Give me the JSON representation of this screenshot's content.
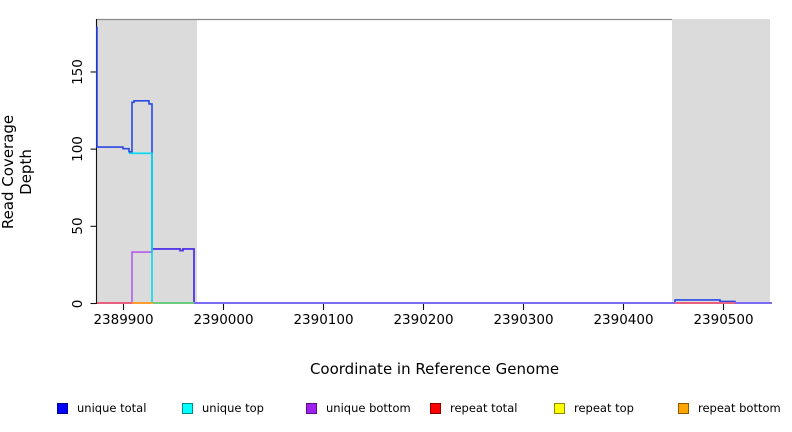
{
  "chart_data": {
    "type": "line",
    "xlabel": "Coordinate in Reference Genome",
    "ylabel": "Read Coverage Depth",
    "x_ticks": [
      2389900,
      2390000,
      2390100,
      2390200,
      2390300,
      2390400,
      2390500
    ],
    "y_ticks": [
      0,
      50,
      100,
      150
    ],
    "xlim": [
      2389874,
      2390549
    ],
    "ylim": [
      0,
      184
    ],
    "grid": false,
    "legend_position": "bottom",
    "shade_color": "#DBDBDB",
    "shaded_regions": [
      {
        "x0": 2389874,
        "x1": 2389974
      },
      {
        "x0": 2390449,
        "x1": 2390547
      }
    ],
    "series": [
      {
        "name": "repeat total",
        "color": "#FF0000",
        "segments": [
          {
            "color": "#E8506E",
            "points": [
              [
                2389874,
                0
              ],
              [
                2390549,
                0
              ]
            ]
          }
        ]
      },
      {
        "name": "repeat top",
        "color": "#FFFF00",
        "segments": [
          {
            "color": "#F5E400",
            "points": [
              [
                2389874,
                0
              ],
              [
                2389909,
                0
              ]
            ]
          }
        ]
      },
      {
        "name": "repeat bottom",
        "color": "#FFA500",
        "segments": [
          {
            "color": "#FF9D2E",
            "points": [
              [
                2389874,
                0
              ],
              [
                2389930,
                0
              ]
            ]
          }
        ]
      },
      {
        "name": "unique total",
        "color": "#0000FF",
        "segments": [
          {
            "color": "#2B48E4",
            "points": [
              [
                2389874,
                179
              ],
              [
                2389874,
                101
              ],
              [
                2389900,
                101
              ],
              [
                2389900,
                100
              ],
              [
                2389906,
                100
              ],
              [
                2389906,
                98
              ],
              [
                2389909,
                98
              ],
              [
                2389909,
                130
              ],
              [
                2389911,
                130
              ],
              [
                2389911,
                131
              ],
              [
                2389926,
                131
              ],
              [
                2389926,
                129
              ],
              [
                2389929,
                129
              ],
              [
                2389929,
                35
              ],
              [
                2389957,
                35
              ],
              [
                2389957,
                34
              ],
              [
                2389960,
                34
              ],
              [
                2389960,
                35
              ],
              [
                2389971,
                35
              ],
              [
                2389971,
                0
              ],
              [
                2390452,
                0
              ],
              [
                2390452,
                2
              ],
              [
                2390497,
                2
              ],
              [
                2390497,
                1
              ],
              [
                2390512,
                1
              ],
              [
                2390512,
                0
              ],
              [
                2390549,
                0
              ]
            ]
          }
        ]
      },
      {
        "name": "unique bottom",
        "color": "#A020F0",
        "segments": [
          {
            "color": "#B55CE8",
            "points": [
              [
                2389874,
                0
              ],
              [
                2389909,
                0
              ],
              [
                2389909,
                33
              ],
              [
                2389929,
                33
              ]
            ]
          },
          {
            "color": "#5A35E8",
            "points": [
              [
                2389929,
                33
              ],
              [
                2389929,
                35
              ],
              [
                2389957,
                35
              ],
              [
                2389957,
                34
              ],
              [
                2389960,
                34
              ],
              [
                2389960,
                35
              ],
              [
                2389971,
                35
              ],
              [
                2389971,
                0
              ]
            ]
          }
        ]
      },
      {
        "name": "unique top",
        "color": "#00FFFF",
        "segments": [
          {
            "color": "#00DCEF",
            "points": [
              [
                2389906,
                97
              ],
              [
                2389929,
                97
              ],
              [
                2389929,
                0
              ],
              [
                2389971,
                0
              ]
            ]
          }
        ]
      }
    ],
    "baseline_overlay": [
      {
        "x0": 2389874,
        "x1": 2389909,
        "color": "#E8617F"
      },
      {
        "x0": 2389909,
        "x1": 2389930,
        "color": "#FF9D2E"
      },
      {
        "x0": 2389930,
        "x1": 2389971,
        "color": "#6CCB7E"
      },
      {
        "x0": 2389971,
        "x1": 2390452,
        "color": "#7B6AF2"
      },
      {
        "x0": 2390452,
        "x1": 2390512,
        "color": "#E8617F"
      },
      {
        "x0": 2390512,
        "x1": 2390549,
        "color": "#7B6AF2"
      }
    ]
  },
  "legend": {
    "items": [
      {
        "label": "unique total",
        "color": "#0000FF"
      },
      {
        "label": "unique top",
        "color": "#00FFFF"
      },
      {
        "label": "unique bottom",
        "color": "#A020F0"
      },
      {
        "label": "repeat total",
        "color": "#FF0000"
      },
      {
        "label": "repeat top",
        "color": "#FFFF00"
      },
      {
        "label": "repeat bottom",
        "color": "#FFA500"
      }
    ]
  }
}
